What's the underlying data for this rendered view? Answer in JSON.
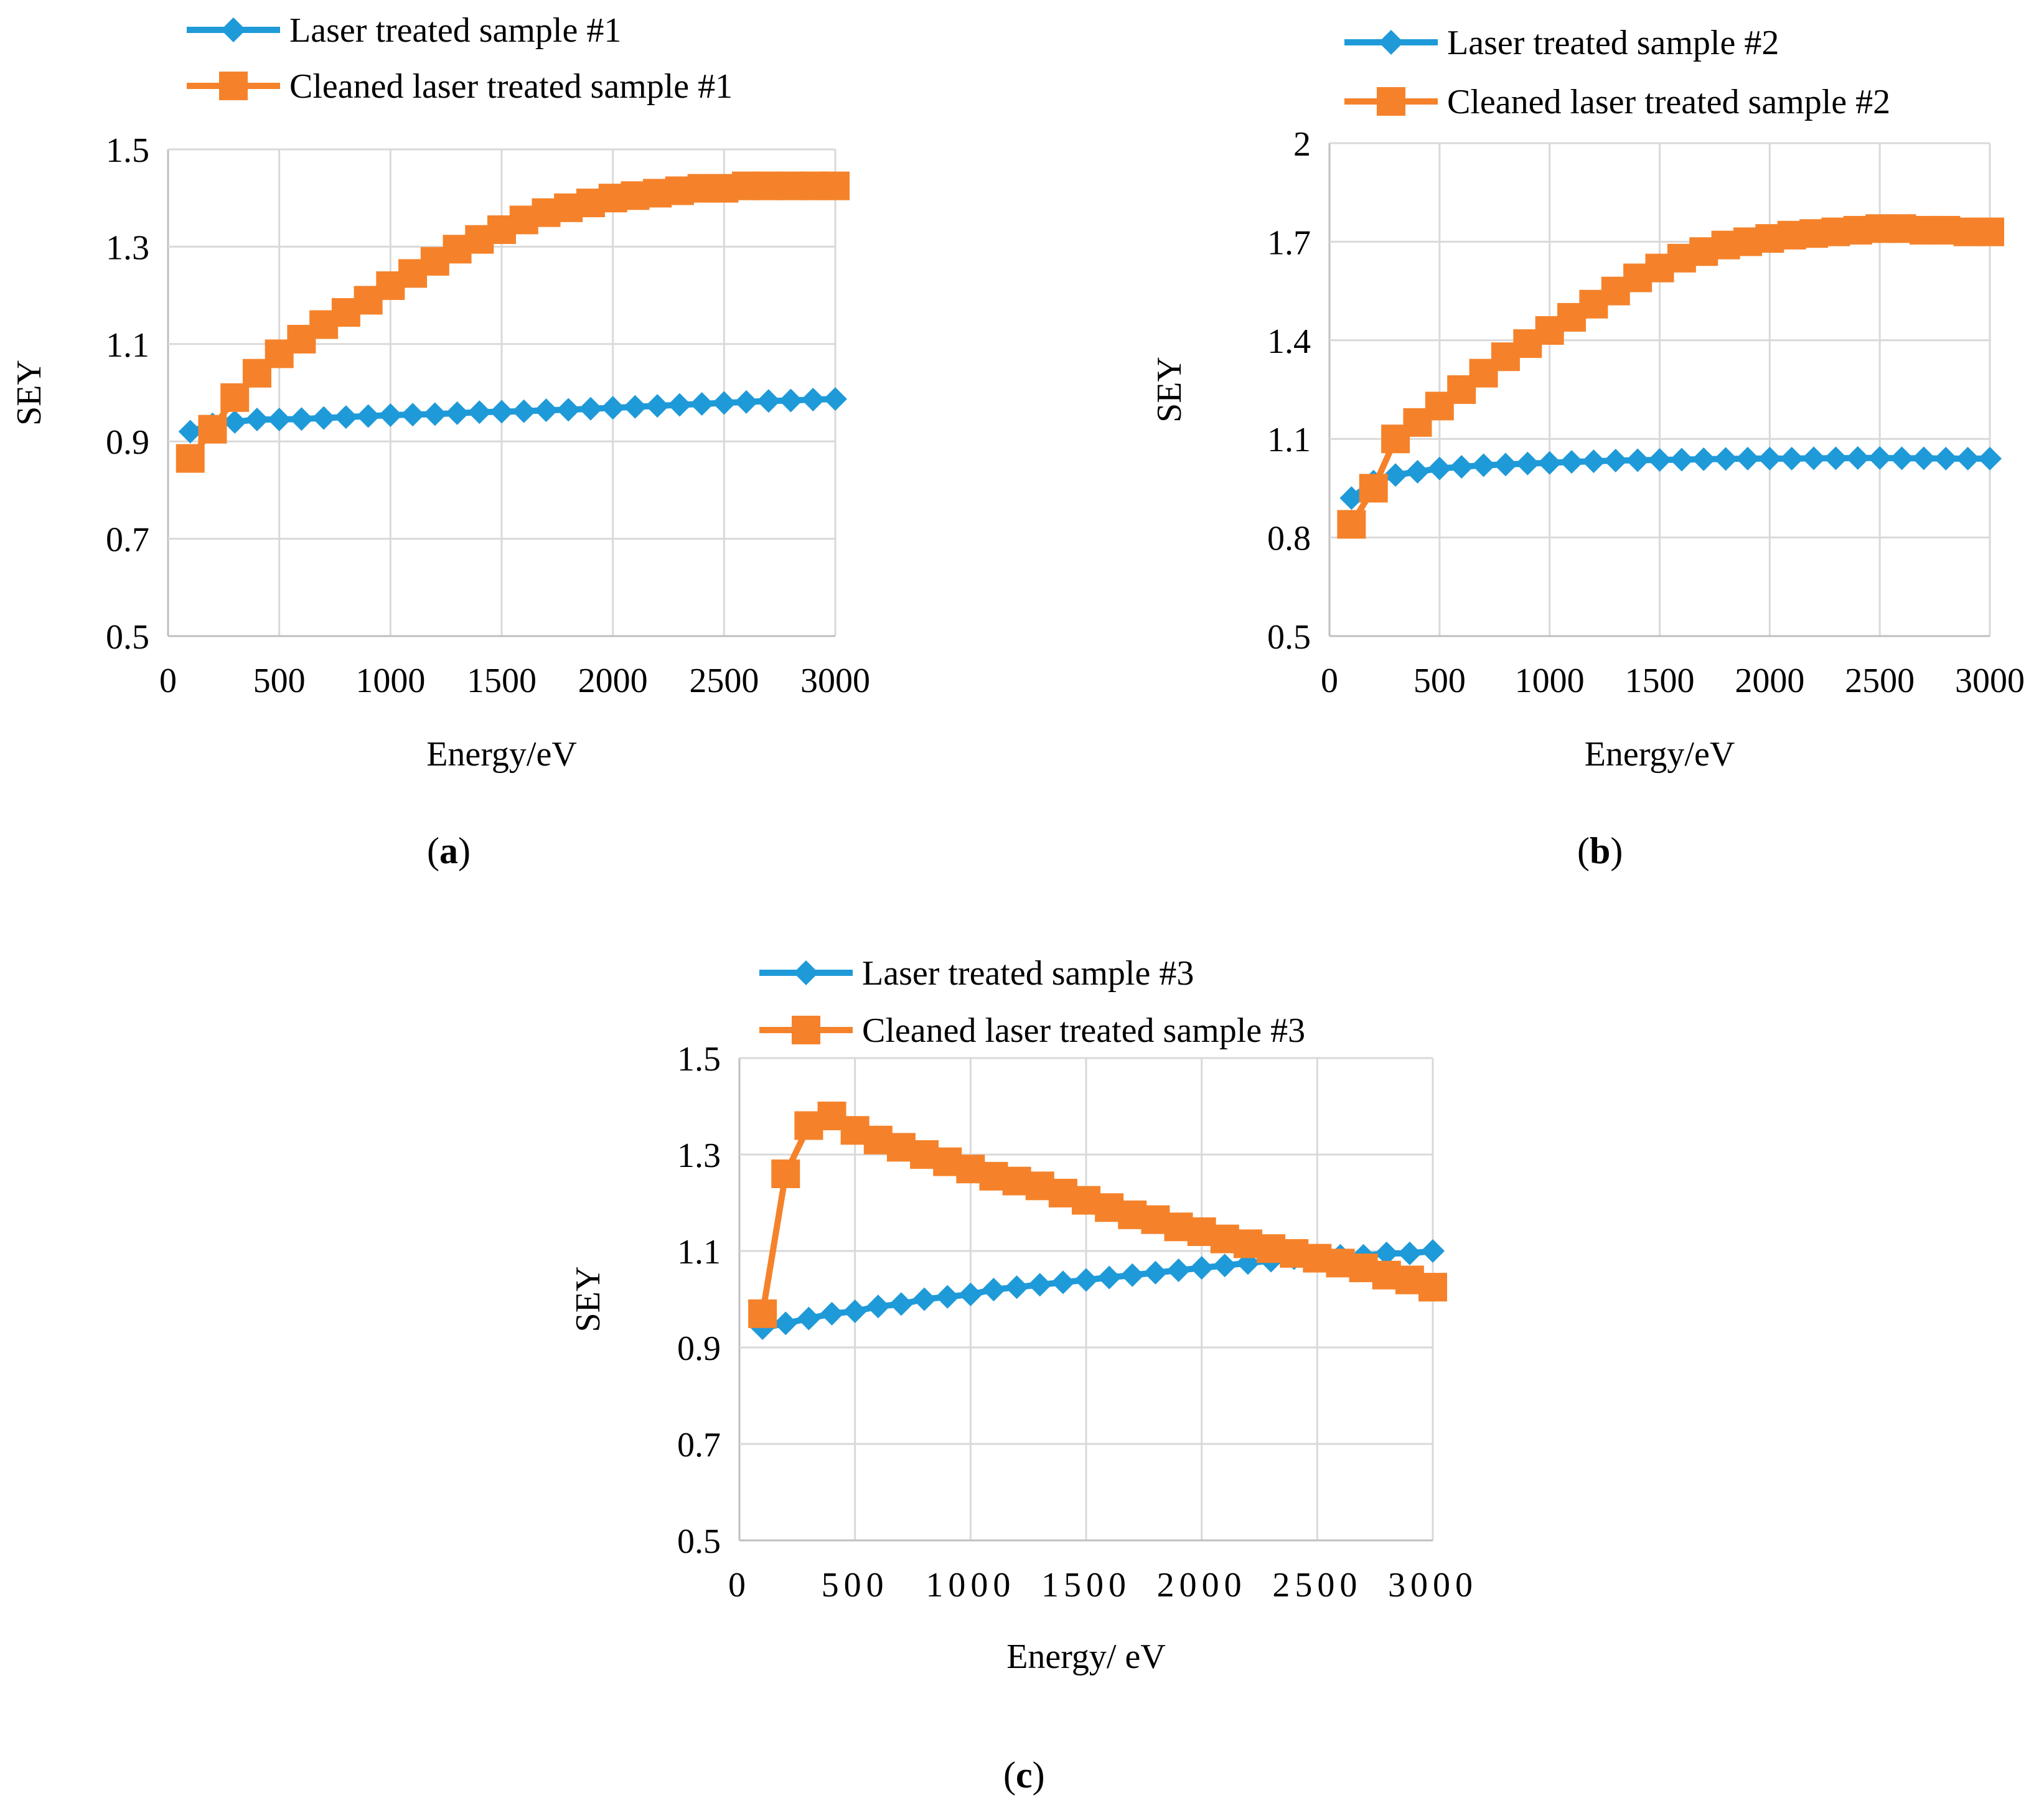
{
  "colors": {
    "series1": "#1f9ad8",
    "series2": "#f5822a",
    "grid": "#d9d9d9",
    "axis": "#bfbfbf",
    "text": "#000000"
  },
  "chart_data": [
    {
      "type": "line",
      "panel_label": "a",
      "xlabel": "Energy/eV",
      "ylabel": "SEY",
      "xlim": [
        0,
        3000
      ],
      "ylim": [
        0.5,
        1.5
      ],
      "xticks": [
        "0",
        "500",
        "1000",
        "1500",
        "2000",
        "2500",
        "3000"
      ],
      "yticks": [
        "0.5",
        "0.7",
        "0.9",
        "1.1",
        "1.3",
        "1.5"
      ],
      "legend_position": "top",
      "grid": true,
      "x": [
        100,
        200,
        300,
        400,
        500,
        600,
        700,
        800,
        900,
        1000,
        1100,
        1200,
        1300,
        1400,
        1500,
        1600,
        1700,
        1800,
        1900,
        2000,
        2100,
        2200,
        2300,
        2400,
        2500,
        2600,
        2700,
        2800,
        2900,
        3000
      ],
      "series": [
        {
          "name": "Laser treated sample #1",
          "marker": "diamond",
          "values": [
            0.92,
            0.935,
            0.94,
            0.945,
            0.945,
            0.946,
            0.948,
            0.95,
            0.952,
            0.954,
            0.955,
            0.956,
            0.958,
            0.96,
            0.961,
            0.962,
            0.964,
            0.965,
            0.967,
            0.969,
            0.971,
            0.973,
            0.975,
            0.977,
            0.979,
            0.981,
            0.983,
            0.984,
            0.986,
            0.987
          ]
        },
        {
          "name": "Cleaned laser treated sample #1",
          "marker": "square",
          "values": [
            0.865,
            0.925,
            0.99,
            1.04,
            1.08,
            1.11,
            1.14,
            1.165,
            1.19,
            1.22,
            1.245,
            1.27,
            1.295,
            1.315,
            1.335,
            1.355,
            1.37,
            1.38,
            1.39,
            1.4,
            1.405,
            1.41,
            1.415,
            1.42,
            1.42,
            1.425,
            1.425,
            1.425,
            1.425,
            1.425
          ]
        }
      ]
    },
    {
      "type": "line",
      "panel_label": "b",
      "xlabel": "Energy/eV",
      "ylabel": "SEY",
      "xlim": [
        0,
        3000
      ],
      "ylim": [
        0.5,
        2.0
      ],
      "xticks": [
        "0",
        "500",
        "1000",
        "1500",
        "2000",
        "2500",
        "3000"
      ],
      "yticks": [
        "0.5",
        "0.8",
        "1.1",
        "1.4",
        "1.7",
        "2"
      ],
      "legend_position": "top",
      "grid": true,
      "x": [
        100,
        200,
        300,
        400,
        500,
        600,
        700,
        800,
        900,
        1000,
        1100,
        1200,
        1300,
        1400,
        1500,
        1600,
        1700,
        1800,
        1900,
        2000,
        2100,
        2200,
        2300,
        2400,
        2500,
        2600,
        2700,
        2800,
        2900,
        3000
      ],
      "series": [
        {
          "name": "Laser treated sample #2",
          "marker": "diamond",
          "values": [
            0.92,
            0.97,
            0.99,
            1.0,
            1.01,
            1.015,
            1.02,
            1.022,
            1.025,
            1.027,
            1.03,
            1.032,
            1.034,
            1.035,
            1.036,
            1.037,
            1.038,
            1.039,
            1.04,
            1.04,
            1.04,
            1.041,
            1.041,
            1.042,
            1.042,
            1.041,
            1.041,
            1.04,
            1.04,
            1.04
          ]
        },
        {
          "name": "Cleaned laser treated sample #2",
          "marker": "square",
          "values": [
            0.84,
            0.95,
            1.1,
            1.15,
            1.2,
            1.25,
            1.3,
            1.35,
            1.39,
            1.43,
            1.47,
            1.51,
            1.55,
            1.59,
            1.62,
            1.65,
            1.67,
            1.69,
            1.7,
            1.71,
            1.72,
            1.725,
            1.73,
            1.735,
            1.74,
            1.74,
            1.735,
            1.735,
            1.73,
            1.73
          ]
        }
      ]
    },
    {
      "type": "line",
      "panel_label": "c",
      "xlabel": "Energy/ eV",
      "ylabel": "SEY",
      "xlim": [
        0,
        3000
      ],
      "ylim": [
        0.5,
        1.5
      ],
      "xticks": [
        "0",
        "500",
        "1000",
        "1500",
        "2000",
        "2500",
        "3000"
      ],
      "yticks": [
        "0.5",
        "0.7",
        "0.9",
        "1.1",
        "1.3",
        "1.5"
      ],
      "legend_position": "top",
      "grid": true,
      "x": [
        100,
        200,
        300,
        400,
        500,
        600,
        700,
        800,
        900,
        1000,
        1100,
        1200,
        1300,
        1400,
        1500,
        1600,
        1700,
        1800,
        1900,
        2000,
        2100,
        2200,
        2300,
        2400,
        2500,
        2600,
        2700,
        2800,
        2900,
        3000
      ],
      "series": [
        {
          "name": "Laser treated sample #3",
          "marker": "diamond",
          "values": [
            0.94,
            0.95,
            0.96,
            0.97,
            0.975,
            0.985,
            0.99,
            1.0,
            1.005,
            1.01,
            1.02,
            1.025,
            1.03,
            1.035,
            1.04,
            1.045,
            1.05,
            1.055,
            1.06,
            1.065,
            1.07,
            1.075,
            1.08,
            1.085,
            1.085,
            1.09,
            1.09,
            1.095,
            1.095,
            1.1
          ]
        },
        {
          "name": "Cleaned laser treated sample #3",
          "marker": "square",
          "values": [
            0.97,
            1.26,
            1.36,
            1.38,
            1.35,
            1.33,
            1.315,
            1.3,
            1.285,
            1.27,
            1.255,
            1.245,
            1.235,
            1.22,
            1.205,
            1.19,
            1.175,
            1.165,
            1.15,
            1.14,
            1.125,
            1.115,
            1.105,
            1.095,
            1.085,
            1.075,
            1.065,
            1.05,
            1.04,
            1.025
          ]
        }
      ]
    }
  ]
}
